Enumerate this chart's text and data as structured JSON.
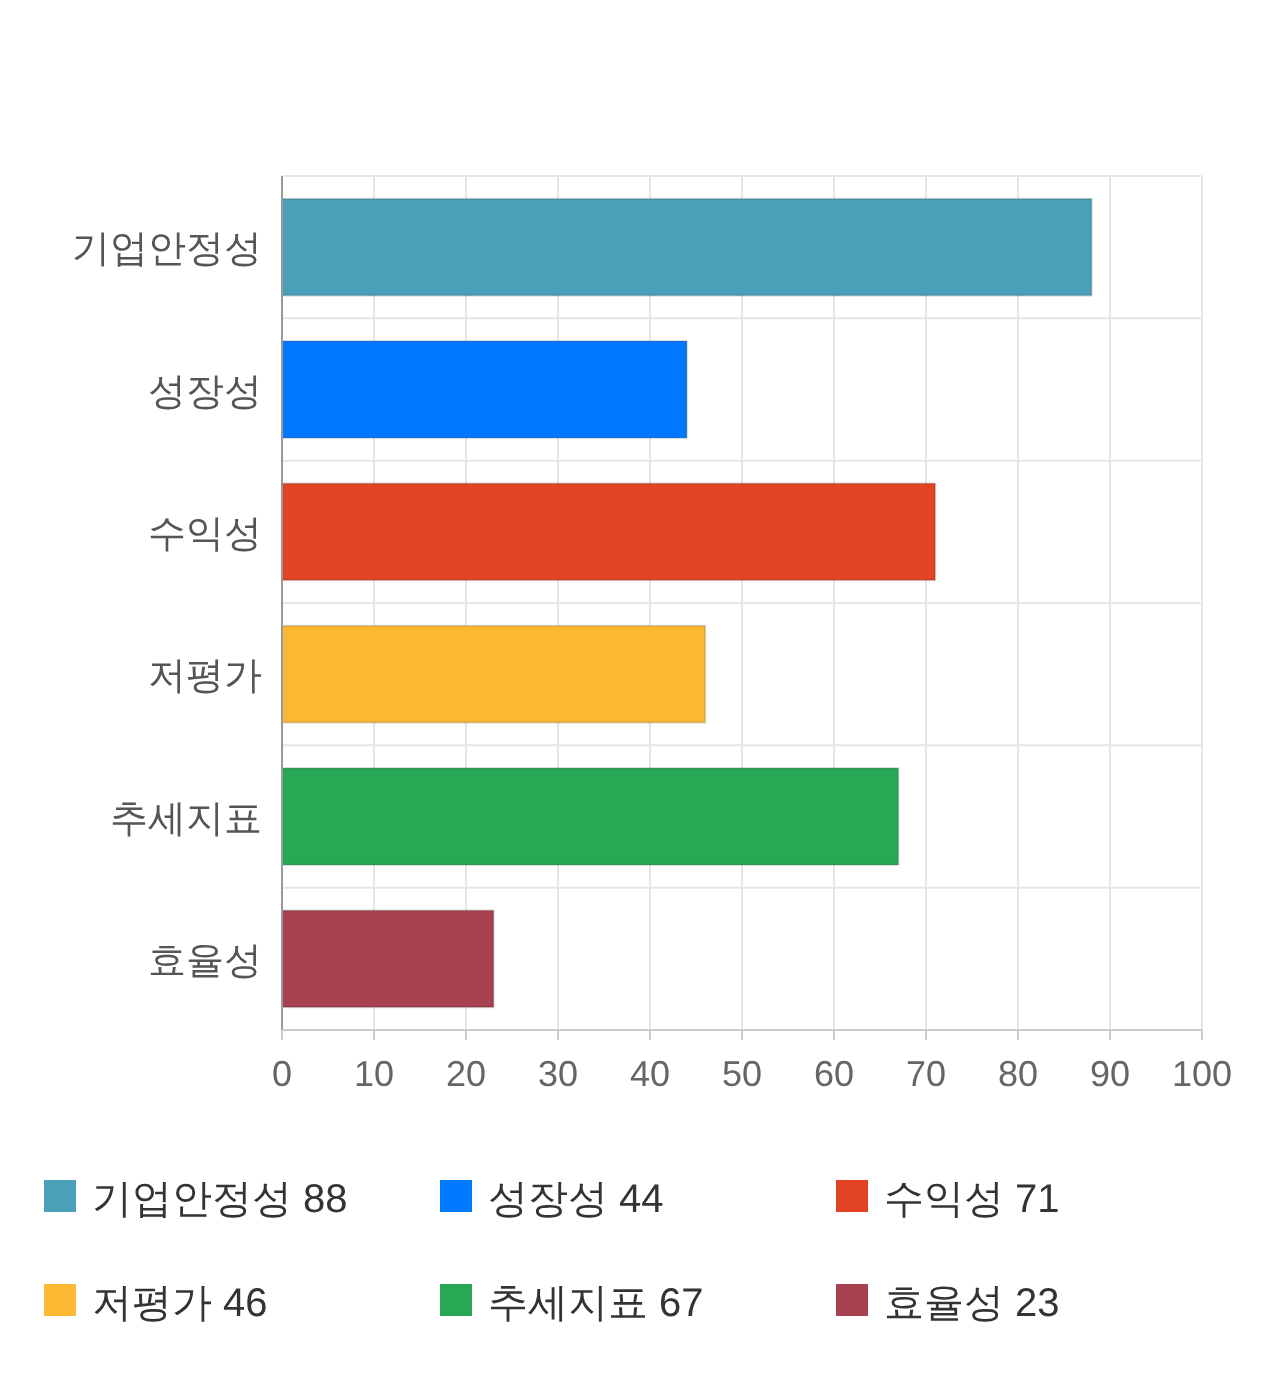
{
  "chart_data": {
    "type": "bar",
    "orientation": "horizontal",
    "categories": [
      "기업안정성",
      "성장성",
      "수익성",
      "저평가",
      "추세지표",
      "효율성"
    ],
    "series": [
      {
        "name": "기업안정성 88",
        "color": "#4aa0b8",
        "values": [
          88,
          null,
          null,
          null,
          null,
          null
        ]
      },
      {
        "name": "성장성 44",
        "color": "#0077ff",
        "values": [
          null,
          44,
          null,
          null,
          null,
          null
        ]
      },
      {
        "name": "수익성 71",
        "color": "#e24424",
        "values": [
          null,
          null,
          71,
          null,
          null,
          null
        ]
      },
      {
        "name": "저평가 46",
        "color": "#fdb833",
        "values": [
          null,
          null,
          null,
          46,
          null,
          null
        ]
      },
      {
        "name": "추세지표 67",
        "color": "#28a754",
        "values": [
          null,
          null,
          null,
          null,
          67,
          null
        ]
      },
      {
        "name": "효율성 23",
        "color": "#a84150",
        "values": [
          null,
          null,
          null,
          null,
          null,
          23
        ]
      }
    ],
    "xlim": [
      0,
      100
    ],
    "xticks": [
      0,
      10,
      20,
      30,
      40,
      50,
      60,
      70,
      80,
      90,
      100
    ],
    "grid": true,
    "legend": "bottom"
  }
}
